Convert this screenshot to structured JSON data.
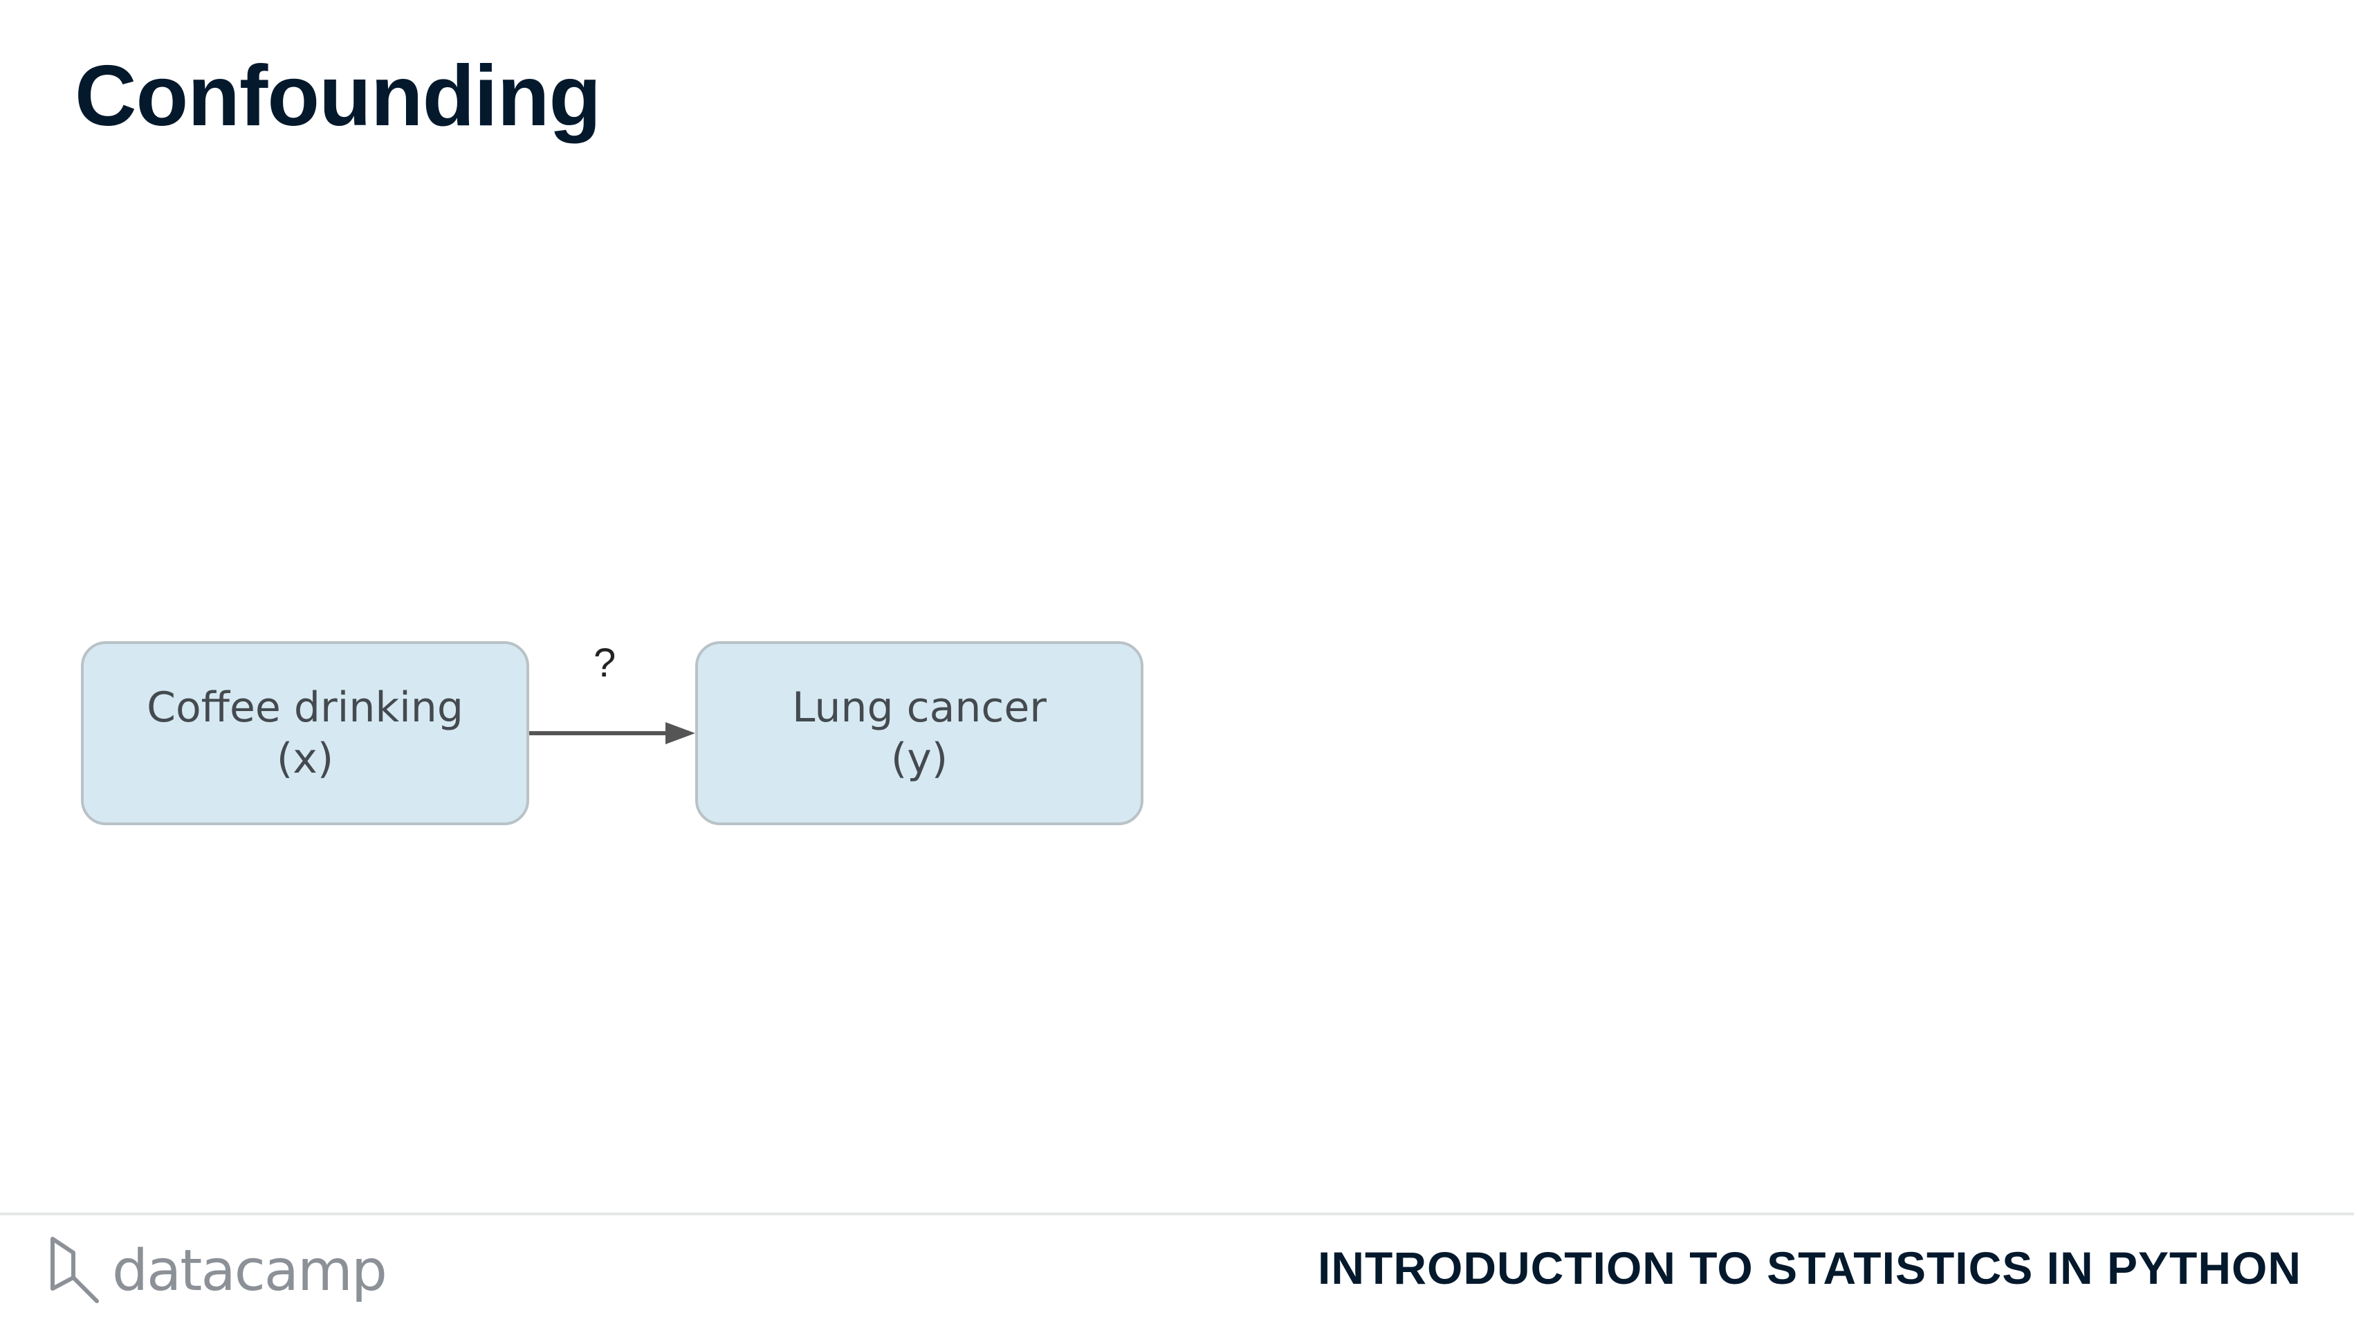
{
  "slide": {
    "title": "Confounding"
  },
  "diagram": {
    "nodes": [
      {
        "id": "x",
        "label": "Coffee drinking",
        "var": "(x)"
      },
      {
        "id": "y",
        "label": "Lung cancer",
        "var": "(y)"
      }
    ],
    "edges": [
      {
        "from": "x",
        "to": "y",
        "label": "?"
      }
    ],
    "colors": {
      "node_fill": "#d6e9f2",
      "node_border": "#b9c2c7",
      "arrow": "#555555"
    }
  },
  "footer": {
    "logo_text": "datacamp",
    "course": "INTRODUCTION TO STATISTICS IN PYTHON"
  }
}
